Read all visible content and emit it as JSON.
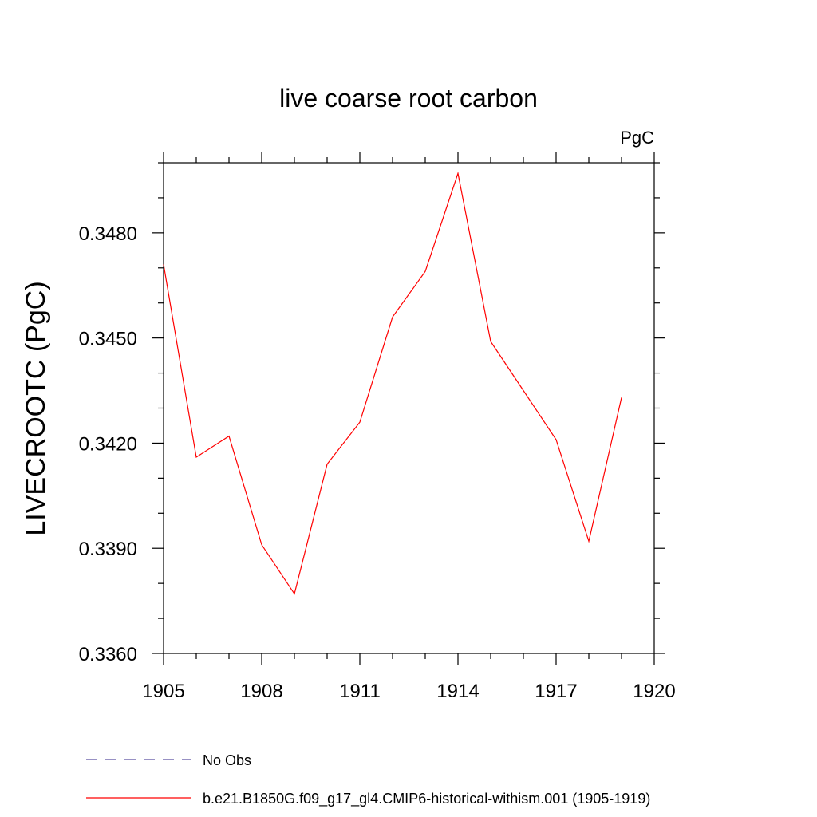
{
  "chart_data": {
    "type": "line",
    "title": "live coarse root carbon",
    "units_label": "PgC",
    "ylabel": "LIVECROOTC  (PgC)",
    "xlabel": "",
    "xlim": [
      1905,
      1920
    ],
    "ylim": [
      0.336,
      0.35
    ],
    "x_ticks": [
      1905,
      1908,
      1911,
      1914,
      1917,
      1920
    ],
    "y_ticks": [
      "0.3360",
      "0.3390",
      "0.3420",
      "0.3450",
      "0.3480"
    ],
    "grid": false,
    "legend_position": "bottom",
    "series": [
      {
        "name": "No Obs",
        "color": "#5a4fa0",
        "style": "dashed",
        "x": [],
        "values": []
      },
      {
        "name": "b.e21.B1850G.f09_g17_gl4.CMIP6-historical-withism.001 (1905-1919)",
        "color": "#ff0000",
        "style": "solid",
        "x": [
          1905,
          1906,
          1907,
          1908,
          1909,
          1910,
          1911,
          1912,
          1913,
          1914,
          1915,
          1916,
          1917,
          1918,
          1919
        ],
        "values": [
          0.3471,
          0.3416,
          0.3422,
          0.3391,
          0.3377,
          0.3414,
          0.3426,
          0.3456,
          0.3469,
          0.3497,
          0.3449,
          0.3435,
          0.3421,
          0.3392,
          0.3433
        ]
      }
    ]
  }
}
